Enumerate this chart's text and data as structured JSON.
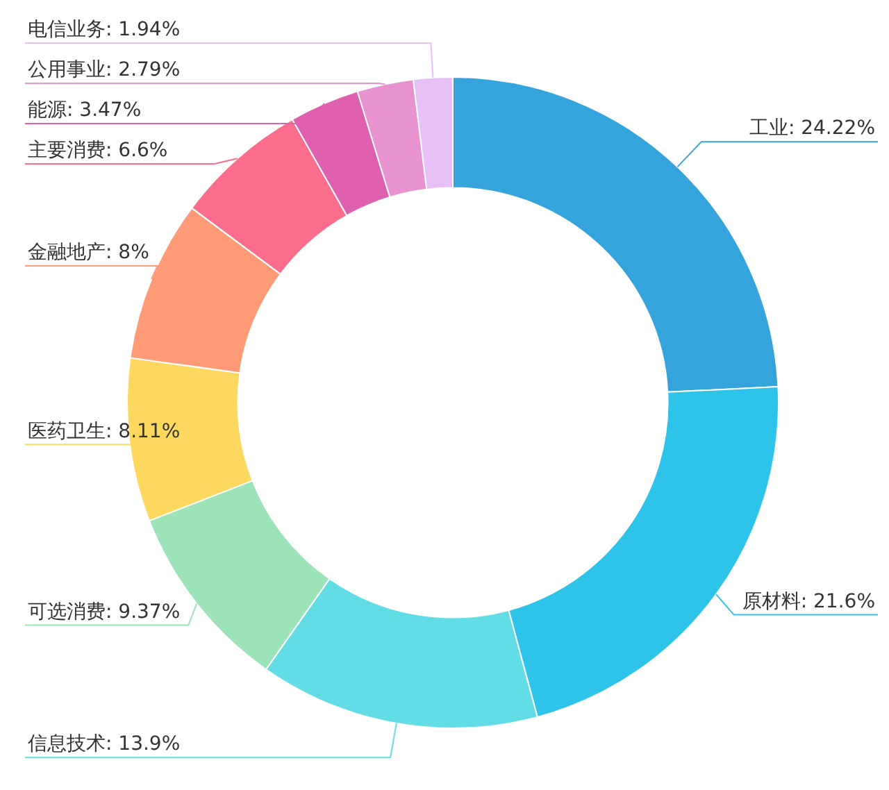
{
  "chart_data": {
    "type": "donut",
    "categories": [
      "工业",
      "原材料",
      "信息技术",
      "可选消费",
      "医药卫生",
      "金融地产",
      "主要消费",
      "能源",
      "公用事业",
      "电信业务"
    ],
    "values": [
      24.22,
      21.6,
      13.9,
      9.37,
      8.11,
      8,
      6.6,
      3.47,
      2.79,
      1.94
    ],
    "value_labels": [
      "24.22%",
      "21.6%",
      "13.9%",
      "9.37%",
      "8.11%",
      "8%",
      "6.6%",
      "3.47%",
      "2.79%",
      "1.94%"
    ],
    "colors": [
      "#35a3dc",
      "#2ec4ea",
      "#62dde6",
      "#9de3b8",
      "#fdd85e",
      "#fe9a76",
      "#fb6d8a",
      "#e060b0",
      "#e892d0",
      "#e6c0f6"
    ],
    "legend": false
  }
}
